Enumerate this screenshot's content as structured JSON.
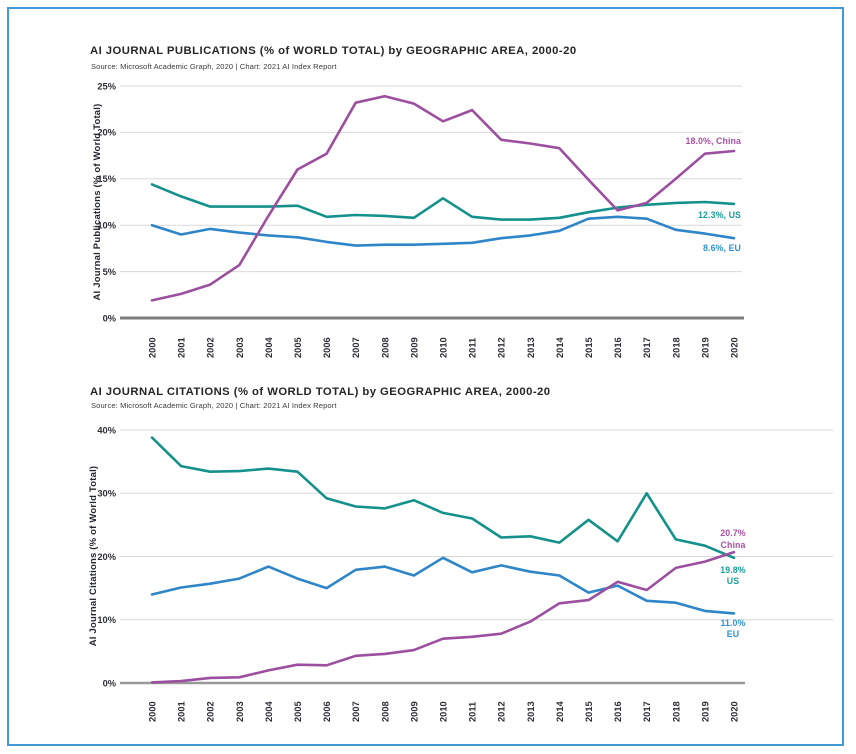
{
  "frame": {
    "border_color": "#3f9ad6"
  },
  "chart_data": [
    {
      "type": "line",
      "title": "AI JOURNAL PUBLICATIONS (% of WORLD TOTAL) by GEOGRAPHIC AREA, 2000-20",
      "source": "Source: Microsoft Academic Graph, 2020 | Chart: 2021 AI Index Report",
      "ylabel": "AI Journal Publications (% of World Total)",
      "xlabel": "",
      "ylim": [
        0,
        25
      ],
      "ytick_step": 5,
      "ytick_labels": [
        "0%",
        "5%",
        "10%",
        "15%",
        "20%",
        "25%"
      ],
      "grid": true,
      "legend_position": "end-of-line",
      "x": [
        2000,
        2001,
        2002,
        2003,
        2004,
        2005,
        2006,
        2007,
        2008,
        2009,
        2010,
        2011,
        2012,
        2013,
        2014,
        2015,
        2016,
        2017,
        2018,
        2019,
        2020
      ],
      "series": [
        {
          "name": "EU",
          "color": "#2e86c8",
          "label_color": "#2e93d2",
          "end_label": [
            "8.6%, EU"
          ],
          "values": [
            10.0,
            9.0,
            9.6,
            9.2,
            8.9,
            8.7,
            8.2,
            7.8,
            7.9,
            7.9,
            8.0,
            8.1,
            8.6,
            8.9,
            9.4,
            10.7,
            10.9,
            10.7,
            9.5,
            9.1,
            8.6
          ]
        },
        {
          "name": "US",
          "color": "#14918b",
          "label_color": "#1b9e98",
          "end_label": [
            "12.3%, US"
          ],
          "values": [
            14.4,
            13.1,
            12.0,
            12.0,
            12.0,
            12.1,
            10.9,
            11.1,
            11.0,
            10.8,
            12.9,
            10.9,
            10.6,
            10.6,
            10.8,
            11.4,
            11.9,
            12.2,
            12.4,
            12.5,
            12.3
          ]
        },
        {
          "name": "China",
          "color": "#9c4f9f",
          "label_color": "#a94fa4",
          "end_label": [
            "18.0%, China"
          ],
          "values": [
            1.9,
            2.6,
            3.6,
            5.7,
            11.0,
            16.0,
            17.7,
            23.2,
            23.9,
            23.1,
            21.2,
            22.4,
            19.2,
            18.8,
            18.3,
            14.9,
            11.6,
            12.4,
            15.0,
            17.7,
            18.0
          ]
        }
      ]
    },
    {
      "type": "line",
      "title": "AI JOURNAL CITATIONS (% of WORLD TOTAL) by GEOGRAPHIC AREA, 2000-20",
      "source": "Source: Microsoft Academic Graph, 2020 | Chart: 2021 AI Index Report",
      "ylabel": "AI Journal Citations (% of World Total)",
      "xlabel": "",
      "ylim": [
        0,
        40
      ],
      "ytick_step": 10,
      "ytick_labels": [
        "0%",
        "10%",
        "20%",
        "30%",
        "40%"
      ],
      "grid": true,
      "legend_position": "end-of-line",
      "x": [
        2000,
        2001,
        2002,
        2003,
        2004,
        2005,
        2006,
        2007,
        2008,
        2009,
        2010,
        2011,
        2012,
        2013,
        2014,
        2015,
        2016,
        2017,
        2018,
        2019,
        2020
      ],
      "series": [
        {
          "name": "EU",
          "color": "#2e86c8",
          "label_color": "#2e93d2",
          "end_label": [
            "11.0%",
            "EU"
          ],
          "values": [
            14.0,
            15.1,
            15.7,
            16.5,
            18.4,
            16.5,
            15.0,
            17.9,
            18.4,
            17.0,
            19.8,
            17.5,
            18.6,
            17.6,
            17.0,
            14.3,
            15.4,
            13.0,
            12.7,
            11.4,
            11.0
          ]
        },
        {
          "name": "US",
          "color": "#14918b",
          "label_color": "#1b9e98",
          "end_label": [
            "19.8%",
            "US"
          ],
          "values": [
            38.8,
            34.3,
            33.4,
            33.5,
            33.9,
            33.4,
            29.2,
            27.9,
            27.6,
            28.9,
            26.9,
            26.0,
            23.0,
            23.2,
            22.2,
            25.8,
            22.4,
            30.0,
            22.7,
            21.7,
            19.8
          ]
        },
        {
          "name": "China",
          "color": "#9c4f9f",
          "label_color": "#a94fa4",
          "end_label": [
            "20.7%",
            "China"
          ],
          "values": [
            0.1,
            0.3,
            0.8,
            0.9,
            2.0,
            2.9,
            2.8,
            4.3,
            4.6,
            5.2,
            7.0,
            7.3,
            7.8,
            9.7,
            12.6,
            13.1,
            16.0,
            14.7,
            18.2,
            19.2,
            20.7
          ]
        }
      ]
    }
  ]
}
